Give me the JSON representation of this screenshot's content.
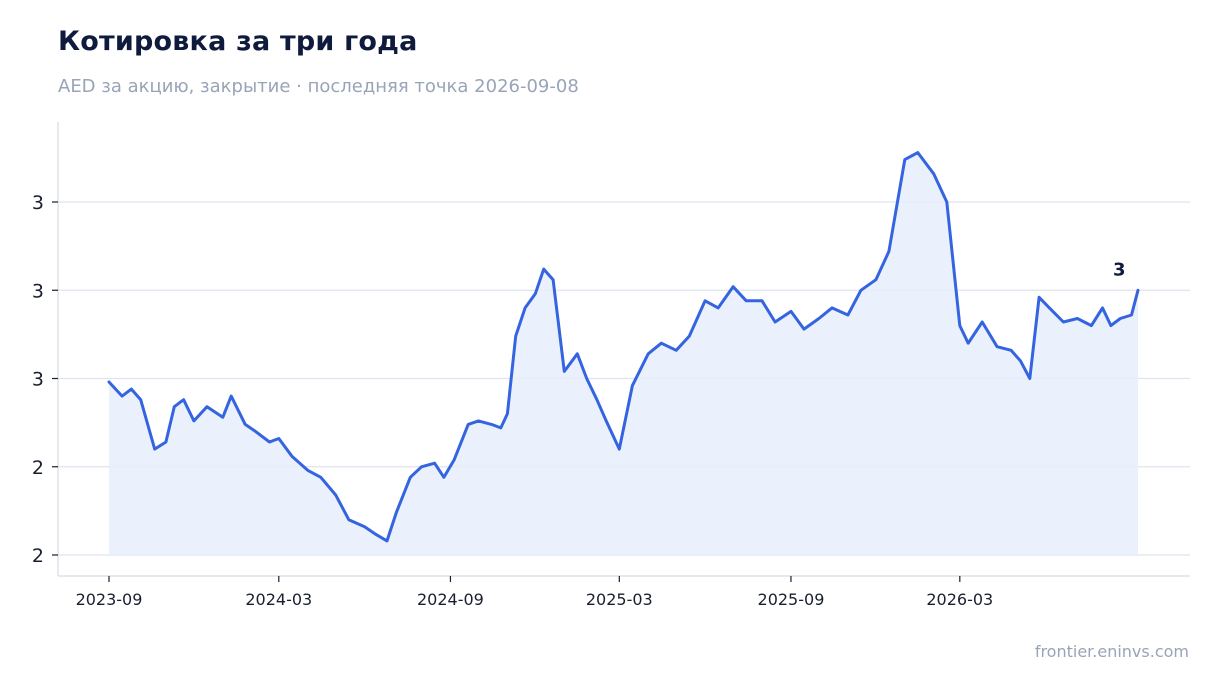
{
  "title": "Котировка за три года",
  "subtitle": "AED за акцию, закрытие · последняя точка 2026-09-08",
  "source": "frontier.eninvs.com",
  "colors": {
    "line": "#3464e0",
    "fill": "#e8eefb",
    "grid": "#dfe4ee",
    "axis": "#d6dbe4",
    "title": "#0f1b3d",
    "muted": "#98a4b8"
  },
  "chart_data": {
    "type": "area",
    "title": "Котировка за три года",
    "subtitle": "AED за акцию, закрытие · последняя точка 2026-09-08",
    "xlabel": "",
    "ylabel": "",
    "xlim": [
      "2023-09-01",
      "2026-09-08"
    ],
    "ylim": [
      2.0,
      3.0
    ],
    "grid": true,
    "x_ticks": [
      "2023-09",
      "2024-03",
      "2024-09",
      "2025-03",
      "2025-09",
      "2026-03"
    ],
    "y_ticks": [
      {
        "value": 2.0,
        "label": "2"
      },
      {
        "value": 2.25,
        "label": "2"
      },
      {
        "value": 2.5,
        "label": "3"
      },
      {
        "value": 2.75,
        "label": "3"
      },
      {
        "value": 3.0,
        "label": "3"
      }
    ],
    "end_label": "3",
    "series": [
      {
        "x": [
          "2023-09-01",
          "2023-09-15",
          "2023-09-25",
          "2023-10-05",
          "2023-10-20",
          "2023-11-01",
          "2023-11-10",
          "2023-11-20",
          "2023-12-01",
          "2023-12-15",
          "2024-01-01",
          "2024-01-10",
          "2024-01-25",
          "2024-02-05",
          "2024-02-20",
          "2024-03-01",
          "2024-03-15",
          "2024-04-01",
          "2024-04-15",
          "2024-05-01",
          "2024-05-15",
          "2024-06-01",
          "2024-06-12",
          "2024-06-25",
          "2024-07-05",
          "2024-07-20",
          "2024-08-01",
          "2024-08-15",
          "2024-08-25",
          "2024-09-05",
          "2024-09-20",
          "2024-10-01",
          "2024-10-15",
          "2024-10-25",
          "2024-11-01",
          "2024-11-10",
          "2024-11-20",
          "2024-12-01",
          "2024-12-10",
          "2024-12-20",
          "2025-01-01",
          "2025-01-15",
          "2025-01-25",
          "2025-02-05",
          "2025-02-15",
          "2025-03-01",
          "2025-03-15",
          "2025-04-01",
          "2025-04-15",
          "2025-05-01",
          "2025-05-15",
          "2025-06-01",
          "2025-06-15",
          "2025-07-01",
          "2025-07-15",
          "2025-08-01",
          "2025-08-15",
          "2025-09-01",
          "2025-09-15",
          "2025-10-01",
          "2025-10-15",
          "2025-11-01",
          "2025-11-15",
          "2025-12-01",
          "2025-12-15",
          "2026-01-01",
          "2026-01-15",
          "2026-02-01",
          "2026-02-15",
          "2026-03-01",
          "2026-03-10",
          "2026-03-25",
          "2026-04-10",
          "2026-04-25",
          "2026-05-05",
          "2026-05-15",
          "2026-05-25",
          "2026-06-05",
          "2026-06-20",
          "2026-07-05",
          "2026-07-20",
          "2026-08-01",
          "2026-08-10",
          "2026-08-20",
          "2026-09-01",
          "2026-09-08"
        ],
        "values": [
          2.49,
          2.45,
          2.47,
          2.44,
          2.3,
          2.32,
          2.42,
          2.44,
          2.38,
          2.42,
          2.39,
          2.45,
          2.37,
          2.35,
          2.32,
          2.33,
          2.28,
          2.24,
          2.22,
          2.17,
          2.1,
          2.08,
          2.06,
          2.04,
          2.12,
          2.22,
          2.25,
          2.26,
          2.22,
          2.27,
          2.37,
          2.38,
          2.37,
          2.36,
          2.4,
          2.62,
          2.7,
          2.74,
          2.81,
          2.78,
          2.52,
          2.57,
          2.5,
          2.44,
          2.38,
          2.3,
          2.48,
          2.57,
          2.6,
          2.58,
          2.62,
          2.72,
          2.7,
          2.76,
          2.72,
          2.72,
          2.66,
          2.69,
          2.64,
          2.67,
          2.7,
          2.68,
          2.75,
          2.78,
          2.86,
          3.12,
          3.14,
          3.08,
          3.0,
          2.65,
          2.6,
          2.66,
          2.59,
          2.58,
          2.55,
          2.5,
          2.73,
          2.7,
          2.66,
          2.67,
          2.65,
          2.7,
          2.65,
          2.67,
          2.68,
          2.75
        ]
      }
    ]
  }
}
